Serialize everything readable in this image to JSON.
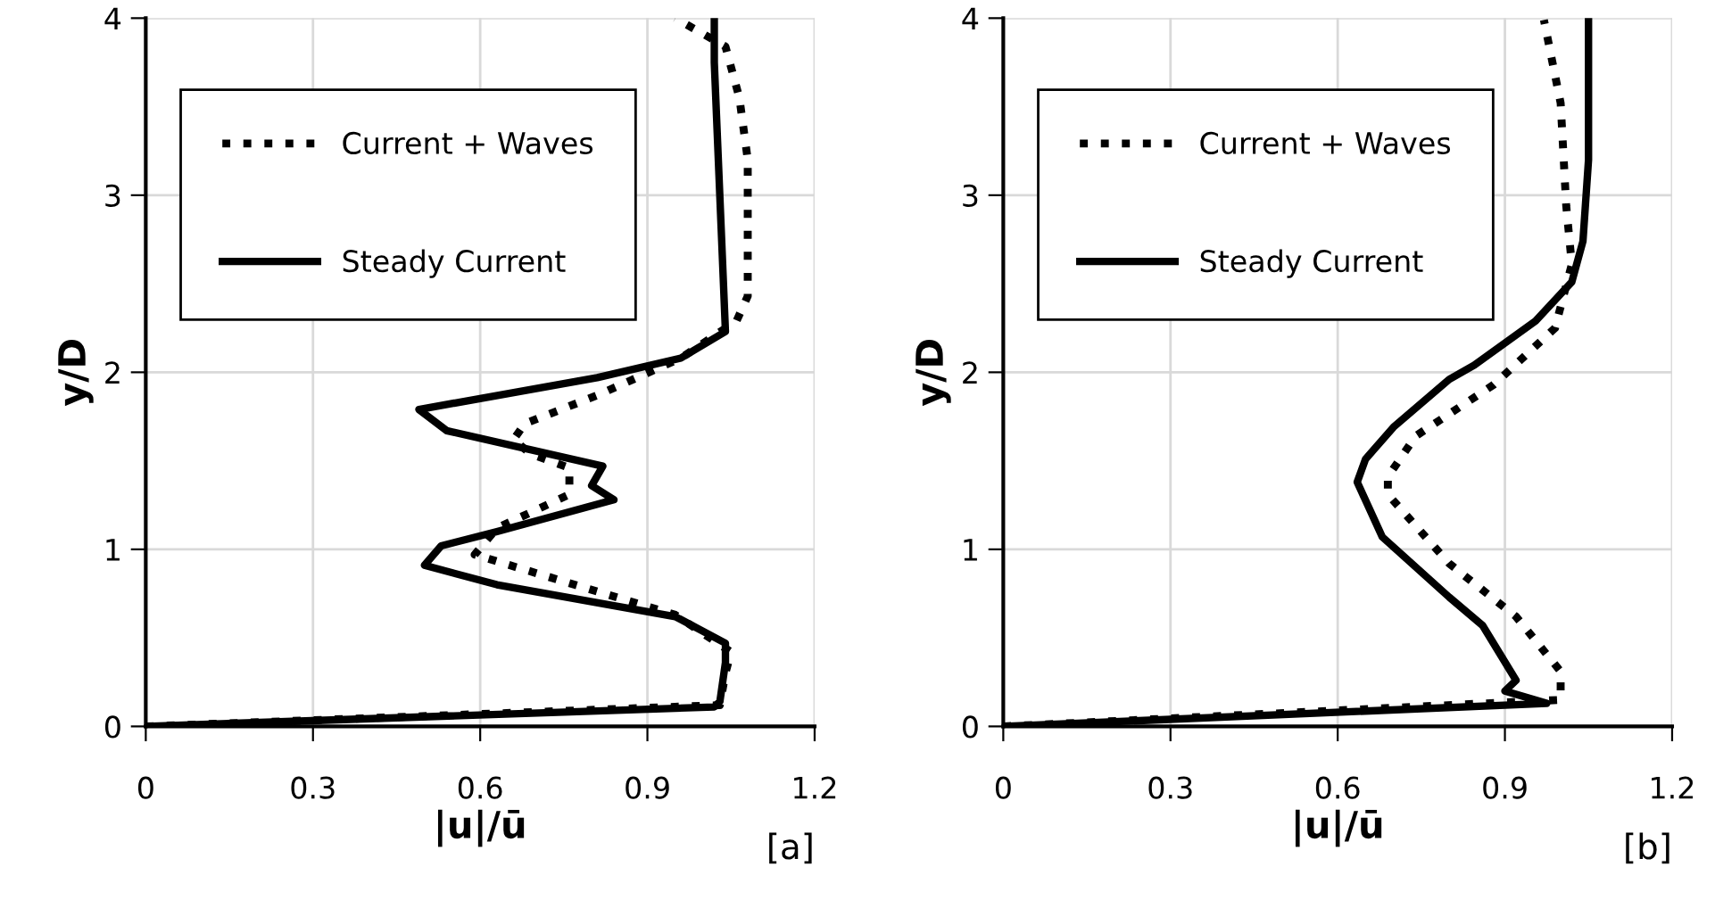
{
  "chart_data": [
    {
      "type": "line",
      "xlabel": "|u|/ū",
      "ylabel": "y/D",
      "xlim": [
        0,
        1.2
      ],
      "ylim": [
        0,
        4
      ],
      "xticks": [
        0,
        0.3,
        0.6,
        0.9,
        1.2
      ],
      "yticks": [
        0,
        1,
        2,
        3,
        4
      ],
      "grid": true,
      "legend": "top left",
      "annotations": [
        "[a]"
      ],
      "series": [
        {
          "name": "Current + Waves",
          "color": "#000000",
          "line_style": "dotted",
          "x": [
            0,
            1.03,
            1.04,
            1.05,
            0.95,
            0.59,
            0.63,
            0.76,
            0.76,
            0.69,
            0.66,
            0.68,
            0.81,
            0.96,
            1.06,
            1.08,
            1.08,
            1.065,
            1.04,
            0.95
          ],
          "values": [
            0,
            0.12,
            0.3,
            0.42,
            0.63,
            0.97,
            1.12,
            1.31,
            1.46,
            1.54,
            1.62,
            1.71,
            1.87,
            2.08,
            2.29,
            2.43,
            3.2,
            3.55,
            3.84,
            4.0
          ]
        },
        {
          "name": "Steady Current",
          "color": "#000000",
          "line_style": "solid",
          "x": [
            0,
            1.02,
            1.03,
            1.04,
            1.04,
            0.95,
            0.63,
            0.5,
            0.53,
            0.63,
            0.84,
            0.8,
            0.82,
            0.54,
            0.49,
            0.81,
            0.96,
            1.04,
            1.02,
            1.02
          ],
          "values": [
            0,
            0.11,
            0.14,
            0.36,
            0.47,
            0.62,
            0.8,
            0.91,
            1.02,
            1.1,
            1.28,
            1.36,
            1.47,
            1.67,
            1.79,
            1.97,
            2.08,
            2.23,
            3.75,
            4.0
          ]
        }
      ]
    },
    {
      "type": "line",
      "xlabel": "|u|/ū",
      "ylabel": "y/D",
      "xlim": [
        0,
        1.2
      ],
      "ylim": [
        0,
        4
      ],
      "xticks": [
        0,
        0.3,
        0.6,
        0.9,
        1.2
      ],
      "yticks": [
        0,
        1,
        2,
        3,
        4
      ],
      "grid": true,
      "legend": "top left",
      "annotations": [
        "[b]"
      ],
      "series": [
        {
          "name": "Current + Waves",
          "color": "#000000",
          "line_style": "dotted",
          "x": [
            0,
            1.0,
            1.0,
            0.92,
            0.8,
            0.69,
            0.69,
            0.74,
            0.88,
            0.99,
            1.02,
            1.01,
            1.0,
            0.97
          ],
          "values": [
            0,
            0.15,
            0.31,
            0.62,
            0.92,
            1.31,
            1.41,
            1.64,
            1.93,
            2.25,
            2.61,
            2.94,
            3.52,
            3.99
          ]
        },
        {
          "name": "Steady Current",
          "color": "#000000",
          "line_style": "solid",
          "x": [
            0,
            0.975,
            0.9,
            0.92,
            0.86,
            0.8,
            0.68,
            0.635,
            0.65,
            0.7,
            0.8,
            0.845,
            0.955,
            1.02,
            1.04,
            1.05,
            1.05
          ],
          "values": [
            0,
            0.13,
            0.2,
            0.26,
            0.57,
            0.73,
            1.07,
            1.38,
            1.51,
            1.69,
            1.96,
            2.04,
            2.29,
            2.51,
            2.74,
            3.2,
            4.0
          ]
        }
      ]
    }
  ]
}
